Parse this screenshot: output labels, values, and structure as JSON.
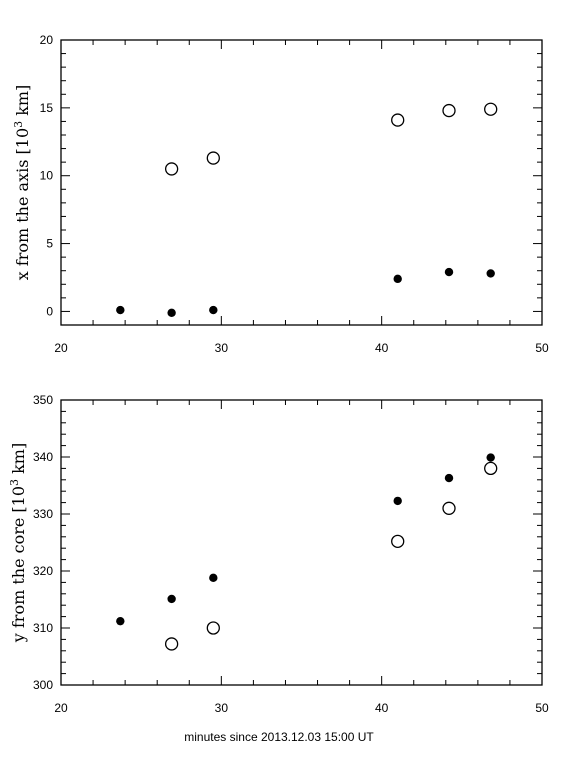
{
  "chart_data": [
    {
      "type": "scatter",
      "ylabel_main": "x from the axis [10",
      "ylabel_sup": "3",
      "ylabel_end": " km]",
      "xlim": [
        20,
        50
      ],
      "ylim": [
        -1,
        20
      ],
      "x_ticks": [
        20,
        30,
        40,
        50
      ],
      "y_ticks": [
        0,
        5,
        10,
        15,
        20
      ],
      "x_minor_step": 2,
      "y_minor_step": 1,
      "series": [
        {
          "marker": "filled-circle",
          "x": [
            23.7,
            26.9,
            29.5,
            41.0,
            44.2,
            46.8
          ],
          "y": [
            0.1,
            -0.1,
            0.1,
            2.4,
            2.9,
            2.8
          ]
        },
        {
          "marker": "open-circle",
          "x": [
            26.9,
            29.5,
            41.0,
            44.2,
            46.8
          ],
          "y": [
            10.5,
            11.3,
            14.1,
            14.8,
            14.9
          ]
        }
      ]
    },
    {
      "type": "scatter",
      "ylabel_main": "y from the core [10",
      "ylabel_sup": "3",
      "ylabel_end": " km]",
      "xlabel": "minutes since 2013.12.03 15:00 UT",
      "xlim": [
        20,
        50
      ],
      "ylim": [
        300,
        350
      ],
      "x_ticks": [
        20,
        30,
        40,
        50
      ],
      "y_ticks": [
        300,
        310,
        320,
        330,
        340,
        350
      ],
      "x_minor_step": 2,
      "y_minor_step": 2,
      "series": [
        {
          "marker": "filled-circle",
          "x": [
            23.7,
            26.9,
            29.5,
            41.0,
            44.2,
            46.8
          ],
          "y": [
            311.2,
            315.1,
            318.8,
            332.3,
            336.3,
            339.9
          ]
        },
        {
          "marker": "open-circle",
          "x": [
            26.9,
            29.5,
            41.0,
            44.2,
            46.8
          ],
          "y": [
            307.2,
            310.0,
            325.2,
            331.0,
            338.0
          ]
        }
      ]
    }
  ]
}
